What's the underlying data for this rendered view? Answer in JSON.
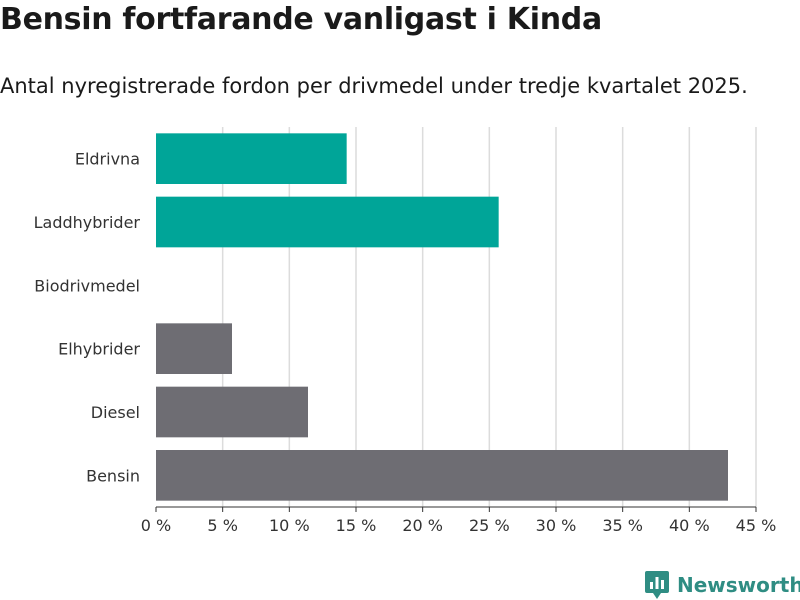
{
  "chart_data": {
    "type": "bar",
    "orientation": "horizontal",
    "title": "Bensin fortfarande vanligast i Kinda",
    "subtitle": "Antal nyregistrerade fordon per drivmedel under tredje kvartalet 2025.",
    "categories": [
      "Eldrivna",
      "Laddhybrider",
      "Biodrivmedel",
      "Elhybrider",
      "Diesel",
      "Bensin"
    ],
    "values": [
      14.3,
      25.7,
      0,
      5.7,
      11.4,
      42.9
    ],
    "bar_colors": [
      "#00a598",
      "#00a598",
      "#00a598",
      "#6e6d73",
      "#6e6d73",
      "#6e6d73"
    ],
    "xlim": [
      0,
      45
    ],
    "xticks": [
      0,
      5,
      10,
      15,
      20,
      25,
      30,
      35,
      40,
      45
    ],
    "xtick_labels": [
      "0 %",
      "5 %",
      "10 %",
      "15 %",
      "20 %",
      "25 %",
      "30 %",
      "35 %",
      "40 %",
      "45 %"
    ],
    "grid": true,
    "xlabel": "",
    "ylabel": ""
  },
  "branding": {
    "logo_text": "Newsworthy",
    "logo_color": "#2f8d83"
  }
}
